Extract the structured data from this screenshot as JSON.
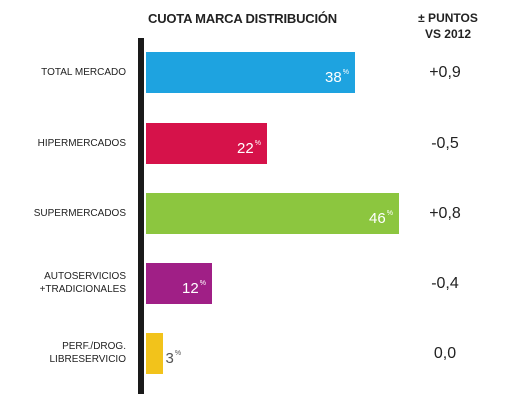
{
  "chart_data": {
    "type": "bar",
    "orientation": "horizontal",
    "title": "CUOTA MARCA DISTRIBUCIÓN",
    "delta_header": [
      "± PUNTOS",
      "VS 2012"
    ],
    "unit_suffix": "%",
    "xlim": [
      0,
      50
    ],
    "grid": false,
    "categories": [
      [
        "TOTAL MERCADO"
      ],
      [
        "HIPERMERCADOS"
      ],
      [
        "SUPERMERCADOS"
      ],
      [
        "AUTOSERVICIOS",
        "+TRADICIONALES"
      ],
      [
        "PERF./DROG.",
        "LIBRESERVICIO"
      ]
    ],
    "values": [
      38,
      22,
      46,
      12,
      3
    ],
    "deltas": [
      "+0,9",
      "-0,5",
      "+0,8",
      "-0,4",
      "0,0"
    ],
    "colors": [
      "#1ea3e0",
      "#d6124a",
      "#8cc63f",
      "#a01f86",
      "#f2c31b"
    ]
  }
}
